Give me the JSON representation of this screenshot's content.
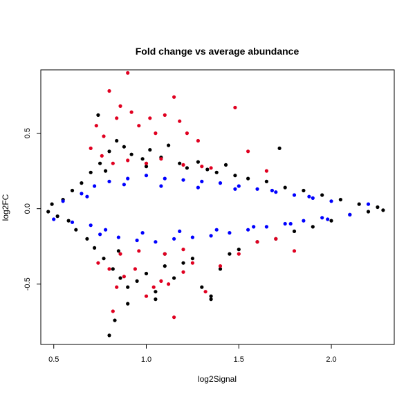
{
  "chart_data": {
    "type": "scatter",
    "title": "Fold change vs average abundance",
    "xlabel": "log2Signal",
    "ylabel": "log2FC",
    "xlim": [
      0.43,
      2.34
    ],
    "ylim": [
      -0.9,
      0.92
    ],
    "x_ticks": [
      0.5,
      1.0,
      1.5,
      2.0
    ],
    "x_tick_labels": [
      "0.5",
      "1.0",
      "1.5",
      "2.0"
    ],
    "y_ticks": [
      -0.5,
      0.0,
      0.5
    ],
    "y_tick_labels": [
      "-0.5",
      "0.0",
      "0.5"
    ],
    "grid": false,
    "series": [
      {
        "color": "#000000",
        "points": [
          [
            0.47,
            -0.02
          ],
          [
            0.49,
            0.03
          ],
          [
            0.52,
            -0.05
          ],
          [
            0.55,
            0.06
          ],
          [
            0.58,
            -0.08
          ],
          [
            0.6,
            0.12
          ],
          [
            0.62,
            -0.14
          ],
          [
            0.65,
            0.17
          ],
          [
            0.68,
            -0.2
          ],
          [
            0.7,
            0.24
          ],
          [
            0.72,
            -0.26
          ],
          [
            0.75,
            0.3
          ],
          [
            0.77,
            -0.33
          ],
          [
            0.8,
            0.38
          ],
          [
            0.82,
            -0.4
          ],
          [
            0.84,
            0.45
          ],
          [
            0.86,
            -0.46
          ],
          [
            0.88,
            0.41
          ],
          [
            0.9,
            -0.52
          ],
          [
            0.92,
            0.36
          ],
          [
            0.95,
            -0.48
          ],
          [
            0.98,
            0.33
          ],
          [
            1.0,
            -0.43
          ],
          [
            1.02,
            0.39
          ],
          [
            1.05,
            -0.55
          ],
          [
            1.08,
            0.34
          ],
          [
            1.1,
            -0.38
          ],
          [
            1.12,
            0.42
          ],
          [
            1.15,
            -0.46
          ],
          [
            1.18,
            0.3
          ],
          [
            1.2,
            -0.36
          ],
          [
            1.22,
            0.27
          ],
          [
            1.25,
            -0.33
          ],
          [
            1.28,
            0.31
          ],
          [
            1.3,
            -0.52
          ],
          [
            1.33,
            0.26
          ],
          [
            1.35,
            -0.58
          ],
          [
            1.38,
            0.24
          ],
          [
            1.4,
            -0.4
          ],
          [
            1.43,
            0.29
          ],
          [
            1.45,
            -0.3
          ],
          [
            1.48,
            0.22
          ],
          [
            1.5,
            -0.27
          ],
          [
            1.55,
            0.2
          ],
          [
            1.6,
            -0.22
          ],
          [
            1.65,
            0.18
          ],
          [
            1.7,
            -0.2
          ],
          [
            1.72,
            0.4
          ],
          [
            1.75,
            0.14
          ],
          [
            1.8,
            -0.15
          ],
          [
            1.85,
            0.12
          ],
          [
            1.9,
            -0.12
          ],
          [
            1.95,
            0.09
          ],
          [
            2.0,
            -0.08
          ],
          [
            2.05,
            0.06
          ],
          [
            2.1,
            -0.04
          ],
          [
            2.15,
            0.03
          ],
          [
            2.2,
            -0.02
          ],
          [
            2.25,
            0.01
          ],
          [
            2.28,
            -0.01
          ],
          [
            0.74,
            0.62
          ],
          [
            0.8,
            -0.84
          ],
          [
            0.83,
            -0.74
          ],
          [
            0.9,
            -0.63
          ],
          [
            1.05,
            -0.6
          ],
          [
            1.35,
            -0.6
          ],
          [
            0.78,
            0.25
          ],
          [
            0.85,
            -0.28
          ],
          [
            1.0,
            0.28
          ],
          [
            1.1,
            -0.3
          ]
        ]
      },
      {
        "color": "#0000ff",
        "points": [
          [
            0.5,
            -0.07
          ],
          [
            0.55,
            0.05
          ],
          [
            0.6,
            -0.09
          ],
          [
            0.65,
            0.1
          ],
          [
            0.7,
            -0.11
          ],
          [
            0.72,
            0.15
          ],
          [
            0.75,
            -0.17
          ],
          [
            0.8,
            0.18
          ],
          [
            0.85,
            -0.19
          ],
          [
            0.9,
            0.2
          ],
          [
            0.95,
            -0.21
          ],
          [
            1.0,
            0.22
          ],
          [
            1.05,
            -0.22
          ],
          [
            1.1,
            0.2
          ],
          [
            1.15,
            -0.2
          ],
          [
            1.2,
            0.19
          ],
          [
            1.25,
            -0.19
          ],
          [
            1.3,
            0.18
          ],
          [
            1.35,
            -0.18
          ],
          [
            1.4,
            0.17
          ],
          [
            1.45,
            -0.16
          ],
          [
            1.5,
            0.15
          ],
          [
            1.55,
            -0.14
          ],
          [
            1.6,
            0.13
          ],
          [
            1.65,
            -0.12
          ],
          [
            1.7,
            0.11
          ],
          [
            1.75,
            -0.1
          ],
          [
            1.8,
            0.09
          ],
          [
            1.85,
            -0.08
          ],
          [
            1.9,
            0.07
          ],
          [
            1.95,
            -0.06
          ],
          [
            2.0,
            0.05
          ],
          [
            2.1,
            -0.04
          ],
          [
            2.2,
            0.03
          ],
          [
            0.68,
            0.08
          ],
          [
            0.78,
            -0.14
          ],
          [
            0.88,
            0.16
          ],
          [
            0.98,
            -0.16
          ],
          [
            1.08,
            0.15
          ],
          [
            1.18,
            -0.15
          ],
          [
            1.28,
            0.14
          ],
          [
            1.38,
            -0.14
          ],
          [
            1.48,
            0.13
          ],
          [
            1.58,
            -0.12
          ],
          [
            1.68,
            0.12
          ],
          [
            1.78,
            -0.1
          ],
          [
            1.88,
            0.08
          ],
          [
            1.98,
            -0.07
          ]
        ]
      },
      {
        "color": "#e00020",
        "points": [
          [
            0.73,
            0.55
          ],
          [
            0.77,
            0.48
          ],
          [
            0.8,
            0.78
          ],
          [
            0.84,
            0.6
          ],
          [
            0.86,
            0.68
          ],
          [
            0.9,
            0.9
          ],
          [
            0.92,
            0.64
          ],
          [
            0.96,
            0.55
          ],
          [
            1.02,
            0.6
          ],
          [
            1.05,
            0.5
          ],
          [
            1.1,
            0.62
          ],
          [
            1.15,
            0.74
          ],
          [
            1.18,
            0.58
          ],
          [
            1.22,
            0.5
          ],
          [
            1.28,
            0.45
          ],
          [
            1.48,
            0.67
          ],
          [
            1.55,
            0.38
          ],
          [
            0.7,
            0.4
          ],
          [
            0.76,
            0.35
          ],
          [
            0.82,
            0.3
          ],
          [
            0.9,
            0.32
          ],
          [
            1.0,
            0.3
          ],
          [
            1.08,
            0.33
          ],
          [
            1.2,
            0.29
          ],
          [
            1.3,
            0.28
          ],
          [
            0.74,
            -0.36
          ],
          [
            0.8,
            -0.4
          ],
          [
            0.84,
            -0.52
          ],
          [
            0.88,
            -0.45
          ],
          [
            0.94,
            -0.4
          ],
          [
            1.0,
            -0.58
          ],
          [
            1.04,
            -0.52
          ],
          [
            1.08,
            -0.48
          ],
          [
            1.12,
            -0.5
          ],
          [
            1.15,
            -0.72
          ],
          [
            1.2,
            -0.42
          ],
          [
            1.25,
            -0.36
          ],
          [
            1.32,
            -0.55
          ],
          [
            1.4,
            -0.38
          ],
          [
            0.82,
            -0.68
          ],
          [
            0.86,
            -0.3
          ],
          [
            0.96,
            -0.28
          ],
          [
            1.1,
            -0.3
          ],
          [
            1.2,
            -0.27
          ],
          [
            1.5,
            -0.3
          ],
          [
            1.6,
            -0.22
          ],
          [
            1.7,
            -0.2
          ],
          [
            1.8,
            -0.28
          ],
          [
            1.65,
            0.25
          ],
          [
            1.35,
            0.27
          ]
        ]
      }
    ]
  }
}
